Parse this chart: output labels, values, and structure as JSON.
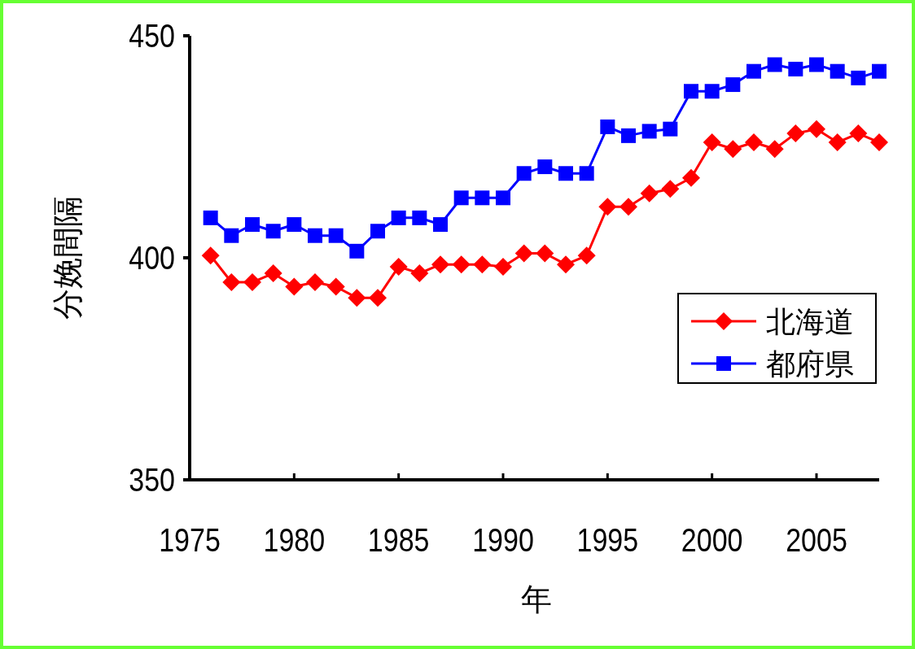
{
  "chart_data": {
    "type": "line",
    "xlabel": "年",
    "ylabel": "分娩間隔",
    "x": [
      1976,
      1977,
      1978,
      1979,
      1980,
      1981,
      1982,
      1983,
      1984,
      1985,
      1986,
      1987,
      1988,
      1989,
      1990,
      1991,
      1992,
      1993,
      1994,
      1995,
      1996,
      1997,
      1998,
      1999,
      2000,
      2001,
      2002,
      2003,
      2004,
      2005,
      2006,
      2007,
      2008
    ],
    "series": [
      {
        "name": "北海道",
        "color": "#ff0000",
        "marker": "diamond",
        "values": [
          400.5,
          394.5,
          394.5,
          396.5,
          393.5,
          394.5,
          393.5,
          391,
          391,
          398,
          396.5,
          398.5,
          398.5,
          398.5,
          398,
          401,
          401,
          398.5,
          400.5,
          411.5,
          411.5,
          414.5,
          415.5,
          418,
          426,
          424.5,
          426,
          424.5,
          428,
          429,
          426,
          428,
          426
        ]
      },
      {
        "name": "都府県",
        "color": "#0000ff",
        "marker": "square",
        "values": [
          409,
          405,
          407.5,
          406,
          407.5,
          405,
          405,
          401.5,
          406,
          409,
          409,
          407.5,
          413.5,
          413.5,
          413.5,
          419,
          420.5,
          419,
          419,
          429.5,
          427.5,
          428.5,
          429,
          437.5,
          437.5,
          439,
          442,
          443.5,
          442.5,
          443.5,
          442,
          440.5,
          442
        ]
      }
    ],
    "xlim": [
      1975,
      2008
    ],
    "ylim": [
      350,
      450
    ],
    "xticks": [
      1975,
      1980,
      1985,
      1990,
      1995,
      2000,
      2005
    ],
    "yticks": [
      350,
      400,
      450
    ],
    "grid": false,
    "legend": "right",
    "line_style": "solid"
  }
}
